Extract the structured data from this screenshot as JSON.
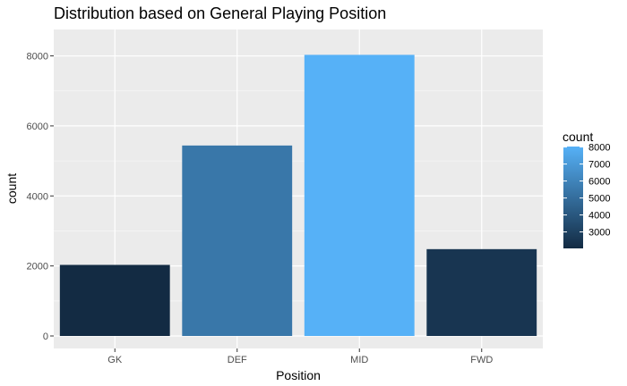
{
  "chart_data": {
    "type": "bar",
    "title": "Distribution based on General Playing Position",
    "xlabel": "Position",
    "ylabel": "count",
    "categories": [
      "GK",
      "DEF",
      "MID",
      "FWD"
    ],
    "values": [
      2030,
      5440,
      8030,
      2480
    ],
    "ylim": [
      0,
      8550
    ],
    "yticks": [
      0,
      2000,
      4000,
      6000,
      8000
    ],
    "grid": true,
    "legend": {
      "title": "count",
      "placement": "right",
      "ticks": [
        3000,
        4000,
        5000,
        6000,
        7000,
        8000
      ],
      "range": [
        2030,
        8030
      ],
      "color_low": "#132B43",
      "color_high": "#56B1F7"
    },
    "colors": {
      "panel": "#ebebeb",
      "grid_major": "#ffffff",
      "grid_minor": "#f5f5f5",
      "tick_text": "#4d4d4d"
    }
  }
}
